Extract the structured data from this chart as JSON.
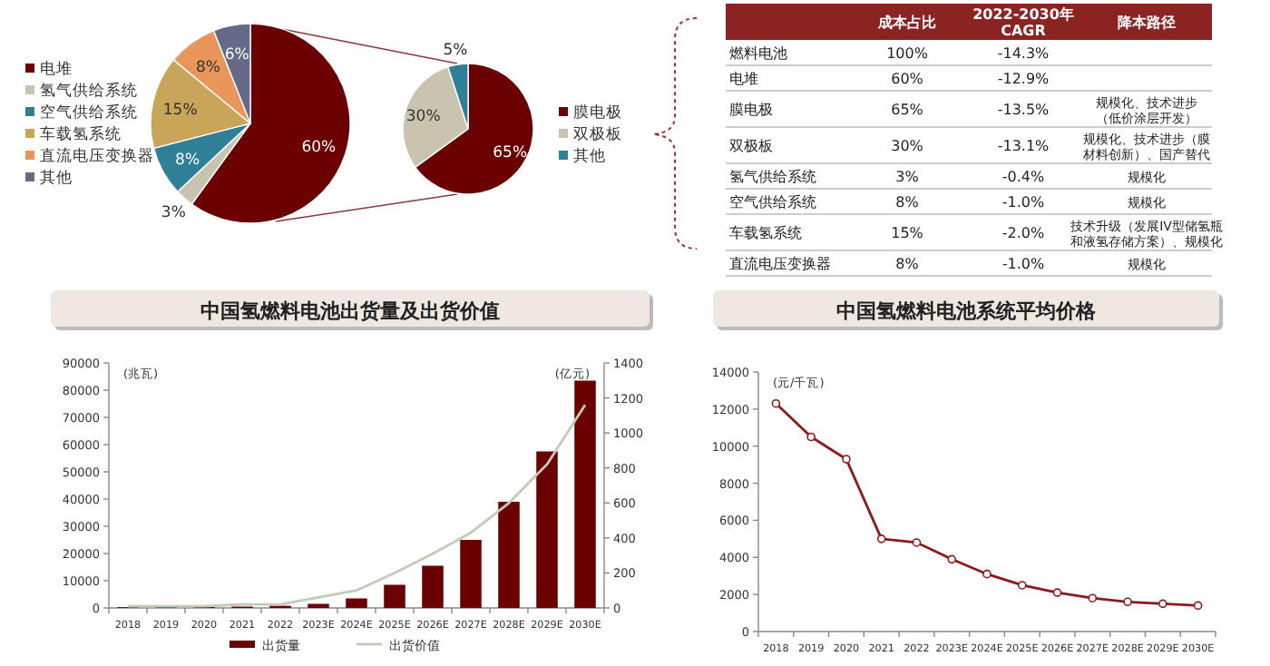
{
  "chart_data": [
    {
      "type": "pie",
      "categories": [
        "电堆",
        "氢气供给系统",
        "空气供给系统",
        "车载氢系统",
        "直流电压变换器",
        "其他"
      ],
      "values": [
        60,
        3,
        8,
        15,
        8,
        6
      ],
      "colors": [
        "#6b0000",
        "#c8c4b0",
        "#2f7f96",
        "#c9a55a",
        "#e8965a",
        "#646a88"
      ],
      "value_labels": [
        "60%",
        "3%",
        "8%",
        "15%",
        "8%",
        "6%"
      ],
      "legend": "left"
    },
    {
      "type": "pie",
      "categories": [
        "膜电极",
        "双极板",
        "其他"
      ],
      "values": [
        65,
        30,
        5
      ],
      "colors": [
        "#6b0000",
        "#c8c4b0",
        "#2f7f96"
      ],
      "value_labels": [
        "65%",
        "30%",
        "5%"
      ],
      "legend": "right"
    },
    {
      "type": "other",
      "categories": [
        null,
        "成本占比",
        "2022-2030年\nCAGR",
        "降本路径"
      ],
      "cell_labels": [
        [
          "燃料电池",
          "100%",
          "-14.3%",
          null
        ],
        [
          "电堆",
          "60%",
          "-12.9%",
          null
        ],
        [
          "膜电极",
          "65%",
          "-13.5%",
          "规模化、技术进步（低价涂层开发）"
        ],
        [
          "双极板",
          "30%",
          "-13.1%",
          "规模化、技术进步（膜材料创新）、国产替代"
        ],
        [
          "氢气供给系统",
          "3%",
          "-0.4%",
          "规模化"
        ],
        [
          "空气供给系统",
          "8%",
          "-1.0%",
          "规模化"
        ],
        [
          "车载氢系统",
          "15%",
          "-2.0%",
          "技术升级（发展IV型储氢瓶和液氢存储方案）、规模化"
        ],
        [
          "直流电压变换器",
          "8%",
          "-1.0%",
          "规模化"
        ]
      ]
    },
    {
      "type": "bar",
      "title": "中国氢燃料电池出货量及出货价值",
      "ylabel": "(兆瓦)",
      "y2label": "(亿元)",
      "categories": [
        "2018",
        "2019",
        "2020",
        "2021",
        "2022",
        "2023E",
        "2024E",
        "2025E",
        "2026E",
        "2027E",
        "2028E",
        "2029E",
        "2030E"
      ],
      "series": [
        {
          "name": "出货量",
          "type": "bar",
          "color": "#6b0000",
          "values": [
            300,
            600,
            500,
            500,
            800,
            1500,
            3500,
            8500,
            15500,
            25000,
            39000,
            57500,
            83500
          ]
        },
        {
          "name": "出货价值",
          "type": "line",
          "axis": "y2",
          "color": "#c8c8b8",
          "values": [
            10,
            10,
            10,
            20,
            20,
            60,
            100,
            200,
            310,
            430,
            600,
            820,
            1160
          ]
        }
      ],
      "ylim": [
        0,
        90000
      ],
      "yticks": [
        0,
        10000,
        20000,
        30000,
        40000,
        50000,
        60000,
        70000,
        80000,
        90000
      ],
      "y2lim": [
        0,
        1400
      ],
      "y2ticks": [
        0,
        200,
        400,
        600,
        800,
        1000,
        1200,
        1400
      ],
      "legend": "bottom"
    },
    {
      "type": "line",
      "title": "中国氢燃料电池系统平均价格",
      "ylabel": "(元/千瓦)",
      "categories": [
        "2018",
        "2019",
        "2020",
        "2021",
        "2022",
        "2023E",
        "2024E",
        "2025E",
        "2026E",
        "2027E",
        "2028E",
        "2029E",
        "2030E"
      ],
      "series": [
        {
          "color": "#8b1a1a",
          "values": [
            12300,
            10500,
            9300,
            5000,
            4800,
            3900,
            3100,
            2500,
            2100,
            1800,
            1600,
            1500,
            1400
          ]
        }
      ],
      "marker": "circle",
      "ylim": [
        0,
        14000
      ],
      "yticks": [
        0,
        2000,
        4000,
        6000,
        8000,
        10000,
        12000,
        14000
      ]
    }
  ]
}
